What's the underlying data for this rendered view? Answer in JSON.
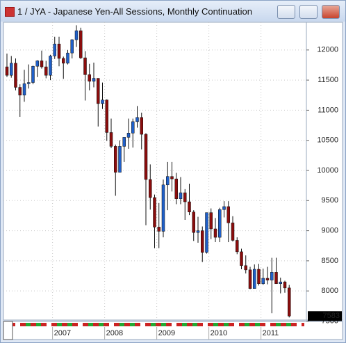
{
  "chart_data": {
    "type": "candlestick",
    "title": "1 / JYA - Japanese Yen-All Sessions, Monthly Continuation",
    "categories": [
      null,
      null,
      null,
      null,
      null,
      null,
      null,
      null,
      null,
      null,
      null,
      "2007",
      null,
      null,
      null,
      null,
      null,
      null,
      null,
      null,
      null,
      null,
      null,
      "2008",
      null,
      null,
      null,
      null,
      null,
      null,
      null,
      null,
      null,
      null,
      null,
      "2009",
      null,
      null,
      null,
      null,
      null,
      null,
      null,
      null,
      null,
      null,
      null,
      "2010",
      null,
      null,
      null,
      null,
      null,
      null,
      null,
      null,
      null,
      null,
      null,
      "2011",
      null,
      null,
      null,
      null,
      null,
      null
    ],
    "open": [
      11720,
      11580,
      11780,
      11380,
      11250,
      11440,
      11460,
      11730,
      11820,
      11720,
      11580,
      11900,
      12100,
      11860,
      11780,
      11950,
      12170,
      12320,
      11870,
      11590,
      11480,
      11530,
      11110,
      11170,
      10630,
      10400,
      9970,
      10400,
      10550,
      10620,
      10810,
      10880,
      10600,
      9850,
      9550,
      9060,
      8990,
      9760,
      9900,
      9860,
      9530,
      9630,
      9480,
      9310,
      8970,
      9000,
      8640,
      9300,
      9030,
      8890,
      9350,
      9400,
      9130,
      8840,
      8650,
      8420,
      8350,
      8040,
      8360,
      8120,
      8210,
      8180,
      8310,
      8120,
      8150,
      8050
    ],
    "high": [
      11940,
      11900,
      11860,
      11430,
      11670,
      11760,
      11740,
      11830,
      11990,
      11820,
      11920,
      12220,
      12220,
      11890,
      12000,
      12180,
      12410,
      12370,
      11980,
      11770,
      11790,
      11530,
      11460,
      11180,
      10860,
      10430,
      10500,
      10550,
      10860,
      10860,
      11070,
      10960,
      10620,
      10100,
      9600,
      9460,
      9850,
      10140,
      10140,
      9960,
      9890,
      9690,
      9780,
      9340,
      9230,
      9070,
      9300,
      9370,
      9210,
      9380,
      9490,
      9490,
      9240,
      8890,
      8700,
      8590,
      8400,
      8440,
      8450,
      8370,
      8400,
      8550,
      8550,
      8220,
      8170,
      8100
    ],
    "low": [
      11550,
      11540,
      11330,
      10890,
      11140,
      11360,
      11430,
      11550,
      11690,
      11530,
      11500,
      11850,
      11730,
      11520,
      11760,
      11860,
      12050,
      11850,
      11160,
      11330,
      11380,
      10730,
      11020,
      10490,
      10370,
      9580,
      9970,
      10140,
      10360,
      10380,
      10710,
      10350,
      9090,
      9350,
      8710,
      8710,
      8890,
      9340,
      9650,
      9440,
      9440,
      9180,
      9260,
      8830,
      8800,
      8480,
      8620,
      8860,
      8810,
      8810,
      9220,
      8810,
      8820,
      8610,
      8360,
      8290,
      8030,
      8040,
      8090,
      8100,
      8110,
      7630,
      8120,
      7960,
      7970,
      7560
    ],
    "close": [
      11580,
      11780,
      11380,
      11250,
      11440,
      11460,
      11730,
      11820,
      11720,
      11580,
      11900,
      12100,
      11860,
      11780,
      11950,
      12170,
      12320,
      11870,
      11590,
      11480,
      11530,
      11110,
      11170,
      10630,
      10400,
      9970,
      10400,
      10550,
      10620,
      10810,
      10880,
      10600,
      9850,
      9550,
      9060,
      8990,
      9760,
      9900,
      9860,
      9530,
      9630,
      9480,
      9310,
      8970,
      9000,
      8640,
      9300,
      9030,
      8890,
      9350,
      9400,
      9130,
      8840,
      8650,
      8420,
      8350,
      8040,
      8360,
      8120,
      8210,
      8180,
      8310,
      8120,
      8150,
      8050,
      7583
    ],
    "up_color": "#1f5fc8",
    "down_color": "#8b0d0d",
    "ylim": [
      7540,
      12460
    ],
    "yticks": [
      7500,
      8000,
      8500,
      9000,
      9500,
      10000,
      10500,
      11000,
      11500,
      12000
    ],
    "grid": true
  }
}
